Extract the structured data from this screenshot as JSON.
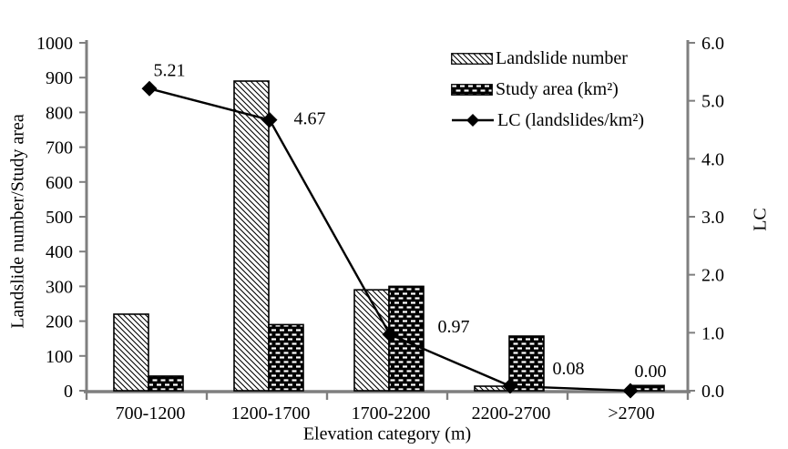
{
  "chart_data": {
    "type": "combo-bar-line",
    "title": "",
    "categories": [
      "700-1200",
      "1200-1700",
      "1700-2200",
      "2200-2700",
      ">2700"
    ],
    "series": [
      {
        "name": "Landslide number",
        "type": "bar",
        "axis": "left",
        "pattern": "diagonal-hatch",
        "values": [
          220,
          890,
          290,
          13,
          0
        ]
      },
      {
        "name": "Study area (km²)",
        "type": "bar",
        "axis": "left",
        "pattern": "brick-dash",
        "values": [
          42,
          190,
          300,
          157,
          15
        ]
      },
      {
        "name": "LC (landslides/km²)",
        "type": "line",
        "axis": "right",
        "marker": "diamond",
        "values": [
          5.21,
          4.67,
          0.97,
          0.08,
          0.0
        ],
        "data_labels": [
          "5.21",
          "4.67",
          "0.97",
          "0.08",
          "0.00"
        ]
      }
    ],
    "left_axis": {
      "title": "Landslide number/Study area",
      "min": 0,
      "max": 1000,
      "step": 100,
      "tick_labels": [
        "0",
        "100",
        "200",
        "300",
        "400",
        "500",
        "600",
        "700",
        "800",
        "900",
        "1000"
      ]
    },
    "right_axis": {
      "title": "LC",
      "min": 0,
      "max": 6,
      "step": 1,
      "tick_labels": [
        "0.0",
        "1.0",
        "2.0",
        "3.0",
        "4.0",
        "5.0",
        "6.0"
      ]
    },
    "x_axis": {
      "title": "Elevation category (m)"
    },
    "legend": {
      "position": "top-right"
    },
    "grid": false,
    "colors": {
      "background": "#ffffff",
      "text": "#000000",
      "axis": "#7f7f7f",
      "series": "#000000"
    }
  }
}
